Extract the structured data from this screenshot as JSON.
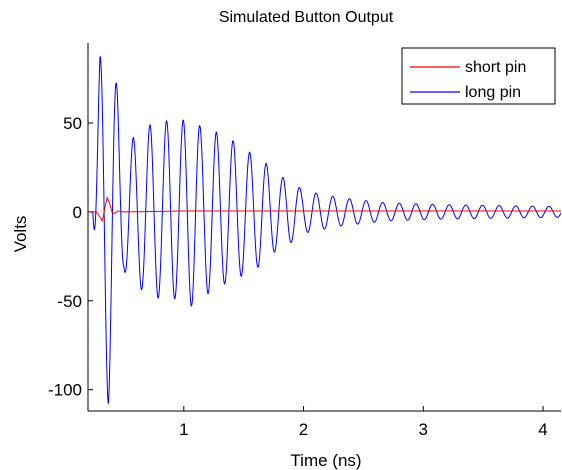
{
  "chart_data": {
    "type": "line",
    "title": "Simulated Button Output",
    "xlabel": "Time (ns)",
    "ylabel": "Volts",
    "xlim": [
      0.2,
      4.15
    ],
    "ylim": [
      -112,
      95
    ],
    "xticks": [
      1,
      2,
      3,
      4
    ],
    "yticks": [
      -100,
      -50,
      0,
      50
    ],
    "grid": false,
    "legend": "top-right",
    "series": [
      {
        "name": "short pin",
        "color": "#ff0000",
        "x": [
          0.2,
          0.24,
          0.27,
          0.3,
          0.32,
          0.34,
          0.36,
          0.38,
          0.4,
          0.42,
          0.45,
          0.5,
          1.0,
          2.0,
          3.0,
          4.15
        ],
        "y": [
          0,
          0,
          0,
          -3,
          -5,
          2,
          8,
          5,
          0,
          -1,
          0.5,
          0,
          0.5,
          0.5,
          0.5,
          0.5
        ]
      },
      {
        "name": "long pin",
        "color": "#0000ff",
        "model": "damped-oscillation",
        "start": 0.24,
        "frequency_ghz": 7.2,
        "peaks": [
          [
            0.3,
            87
          ],
          [
            0.37,
            -108
          ],
          [
            0.44,
            71
          ],
          [
            0.5,
            -33
          ],
          [
            0.58,
            42
          ],
          [
            0.66,
            -44
          ],
          [
            0.73,
            50
          ],
          [
            0.8,
            -48
          ],
          [
            0.87,
            52
          ],
          [
            0.94,
            -48
          ],
          [
            1.0,
            52
          ],
          [
            1.07,
            -53
          ],
          [
            1.14,
            48
          ],
          [
            1.2,
            -46
          ],
          [
            1.27,
            45
          ],
          [
            1.35,
            -40
          ],
          [
            1.42,
            40
          ],
          [
            1.5,
            -35
          ],
          [
            1.57,
            33
          ],
          [
            1.65,
            -30
          ],
          [
            1.72,
            25
          ],
          [
            1.8,
            -20
          ],
          [
            1.88,
            18
          ],
          [
            2.0,
            -12
          ],
          [
            2.3,
            8
          ],
          [
            2.7,
            5
          ],
          [
            3.2,
            4
          ],
          [
            4.15,
            3
          ]
        ]
      }
    ]
  }
}
